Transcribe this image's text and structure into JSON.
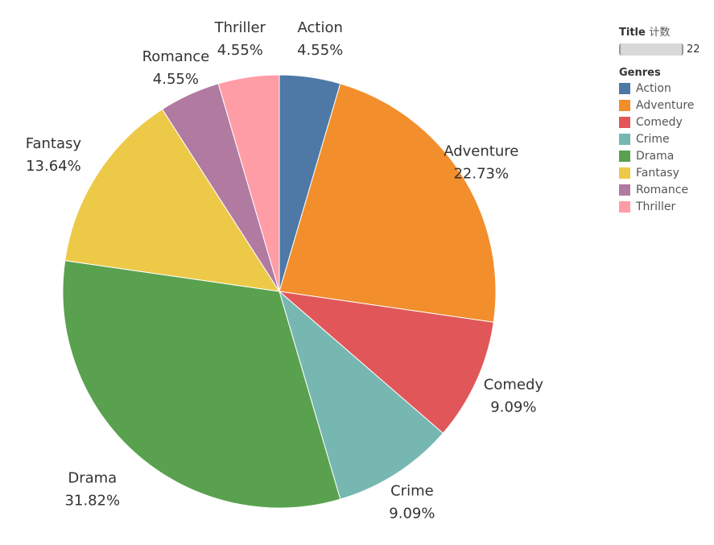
{
  "chart_data": {
    "type": "pie",
    "categories": [
      "Action",
      "Adventure",
      "Comedy",
      "Crime",
      "Drama",
      "Fantasy",
      "Romance",
      "Thriller"
    ],
    "values": [
      1,
      5,
      2,
      2,
      7,
      3,
      1,
      1
    ],
    "percent_labels": [
      "4.55%",
      "22.73%",
      "9.09%",
      "9.09%",
      "31.82%",
      "13.64%",
      "4.55%",
      "4.55%"
    ],
    "colors": [
      "#4e79a7",
      "#f28e2b",
      "#e15759",
      "#76b7b2",
      "#59a14f",
      "#edc948",
      "#b07aa1",
      "#ff9da7"
    ],
    "total": 22,
    "start_angle": "12 o'clock, clockwise"
  },
  "legend": {
    "size_title": "Title",
    "size_title_suffix": "计数",
    "size_value": "22",
    "color_title": "Genres"
  }
}
